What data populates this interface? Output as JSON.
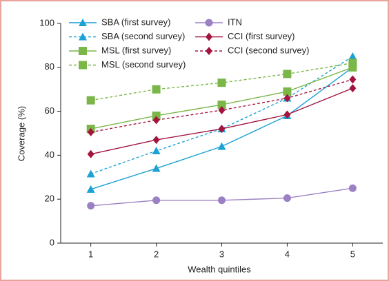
{
  "chart_data": {
    "type": "line",
    "xlabel": "Wealth quintiles",
    "ylabel": "Coverage (%)",
    "x": [
      1,
      2,
      3,
      4,
      5
    ],
    "xlim": [
      0.54,
      5.46
    ],
    "xticks": [
      1,
      2,
      3,
      4,
      5
    ],
    "ylim": [
      0,
      100
    ],
    "yticks": [
      0,
      20,
      40,
      60,
      80,
      100
    ],
    "series": [
      {
        "name": "SBA (first survey)",
        "color": "#1ba1d4",
        "marker": "triangle",
        "dashed": false,
        "values": [
          24.5,
          34,
          44,
          58,
          80
        ]
      },
      {
        "name": "SBA (second survey)",
        "color": "#1ba1d4",
        "marker": "triangle",
        "dashed": true,
        "values": [
          31.5,
          42,
          52,
          66,
          85
        ]
      },
      {
        "name": "MSL (first survey)",
        "color": "#7ab648",
        "marker": "square",
        "dashed": false,
        "values": [
          52,
          58,
          63,
          69,
          80
        ]
      },
      {
        "name": "MSL (second survey)",
        "color": "#7ab648",
        "marker": "square",
        "dashed": true,
        "values": [
          65,
          70,
          73,
          77,
          82
        ]
      },
      {
        "name": "ITN",
        "color": "#9b80c4",
        "marker": "circle",
        "dashed": false,
        "values": [
          17,
          19.5,
          19.5,
          20.5,
          25
        ]
      },
      {
        "name": "CCI (first survey)",
        "color": "#a3153d",
        "marker": "diamond",
        "dashed": false,
        "values": [
          40.5,
          47,
          52,
          58.5,
          70.5
        ]
      },
      {
        "name": "CCI (second survey)",
        "color": "#a3153d",
        "marker": "diamond",
        "dashed": true,
        "values": [
          50.5,
          56,
          60.5,
          66,
          74.5
        ]
      }
    ]
  }
}
